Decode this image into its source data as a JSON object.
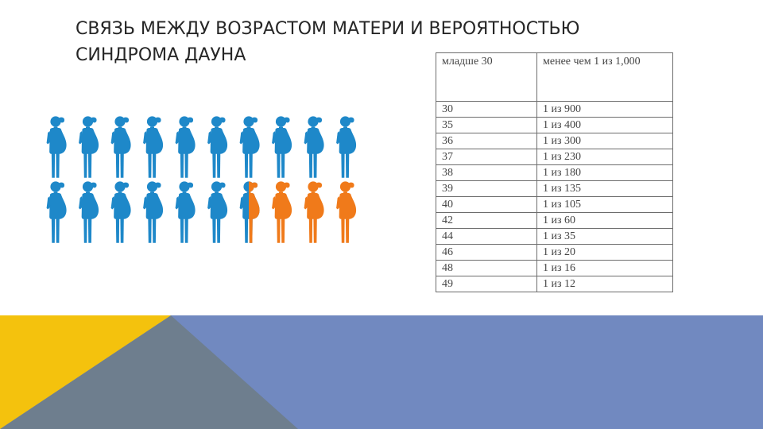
{
  "title": {
    "line1": "СВЯЗЬ МЕЖДУ ВОЗРАСТОМ МАТЕРИ И ВЕРОЯТНОСТЬЮ",
    "line2": "СИНДРОМА ДАУНА"
  },
  "figures": {
    "icon": "pregnant-woman-icon",
    "rows": 2,
    "per_row": 10,
    "highlighted_count": 3.5,
    "colors": {
      "normal": "#1e88c9",
      "highlight": "#f07a1a"
    }
  },
  "table": {
    "header": [
      "младше 30",
      "менее чем 1 из 1,000"
    ],
    "rows": [
      [
        "30",
        "1 из 900"
      ],
      [
        "35",
        "1 из 400"
      ],
      [
        "36",
        "1 из 300"
      ],
      [
        "37",
        "1 из 230"
      ],
      [
        "38",
        "1 из 180"
      ],
      [
        "39",
        "1 из 135"
      ],
      [
        "40",
        "1 из 105"
      ],
      [
        "42",
        "1 из 60"
      ],
      [
        "44",
        "1 из 35"
      ],
      [
        "46",
        "1 из 20"
      ],
      [
        "48",
        "1 из 16"
      ],
      [
        "49",
        "1 из 12"
      ]
    ]
  },
  "footer": {
    "colors": {
      "yellow": "#f4c20d",
      "gray": "#6e7e8e",
      "blue": "#7189c0"
    }
  }
}
